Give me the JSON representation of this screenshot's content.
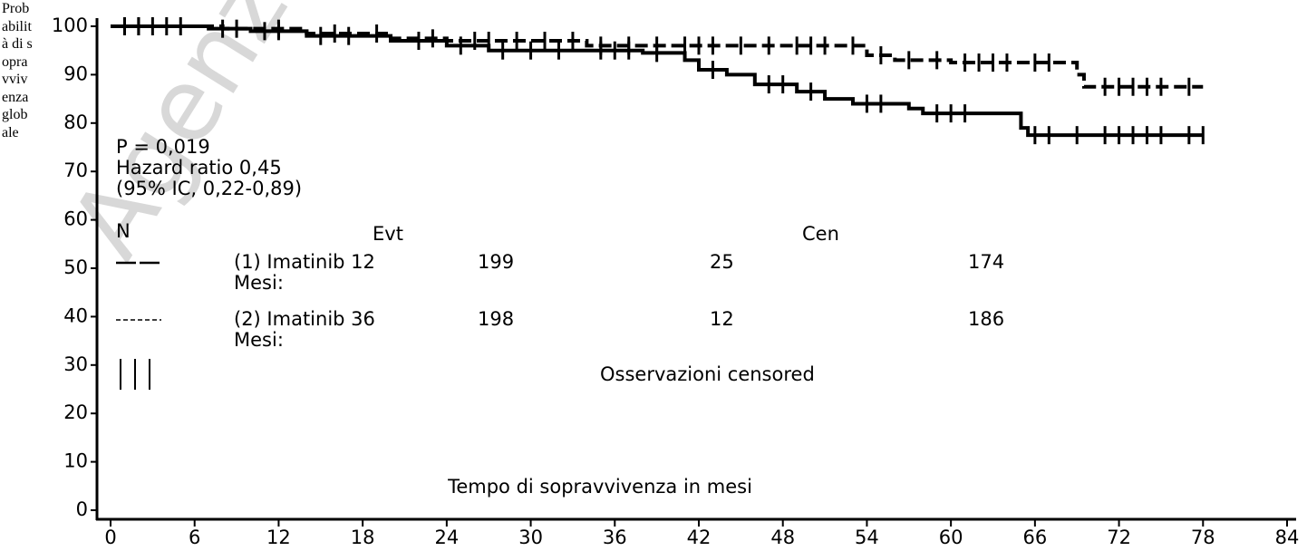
{
  "chart_data": {
    "type": "kaplan-meier",
    "ylabel": "Probabilità di sopravvivenza globale",
    "xlabel": "Tempo di sopravvivenza in mesi",
    "watermark": "Agenzia",
    "annotations": [
      "P = 0,019",
      "Hazard ratio 0,45",
      "(95% IC, 0,22-0,89)"
    ],
    "table_headers": [
      "N",
      "Evt",
      "Cen"
    ],
    "table_rows": [
      {
        "label": [
          "(1) Imatinib 12",
          "Mesi:"
        ],
        "n": 199,
        "evt": 25,
        "cen": 174
      },
      {
        "label": [
          "(2) Imatinib 36",
          "Mesi:"
        ],
        "n": 198,
        "evt": 12,
        "cen": 186
      }
    ],
    "censor_legend": "Osservazioni censored",
    "series": [
      {
        "color": "#000000",
        "dash": false,
        "x": [
          0,
          7,
          10,
          14,
          20,
          24,
          27,
          38,
          41,
          42,
          44,
          46,
          49,
          51,
          53,
          57,
          58,
          65,
          65.5,
          78
        ],
        "values": [
          100,
          99.5,
          99,
          98,
          97,
          96,
          95,
          94.5,
          93,
          91,
          90,
          88,
          86.5,
          85,
          84,
          83,
          82,
          79,
          77.5,
          77.5
        ],
        "censored": [
          1,
          2,
          3,
          5,
          8,
          11,
          12,
          15,
          17,
          22,
          25,
          28,
          30,
          32,
          35,
          36,
          37,
          39,
          43,
          47,
          48,
          50,
          54,
          55,
          59,
          60,
          61,
          66,
          67,
          69,
          71,
          72,
          73,
          74,
          75,
          77,
          78
        ]
      },
      {
        "color": "#000000",
        "dash": true,
        "x": [
          0,
          8,
          14,
          20,
          24,
          34,
          54,
          56,
          60,
          69,
          69.5,
          78
        ],
        "values": [
          100,
          99.5,
          98.5,
          97.5,
          97,
          96,
          94,
          93,
          92.5,
          90,
          87.5,
          87.5
        ],
        "censored": [
          1,
          2,
          4,
          9,
          12,
          16,
          19,
          23,
          26,
          27,
          29,
          31,
          33,
          35,
          37,
          39,
          41,
          42,
          43,
          45,
          47,
          49,
          50,
          51,
          53,
          55,
          57,
          59,
          61,
          62,
          63,
          64,
          66,
          67,
          71,
          72,
          73,
          74,
          75,
          77
        ]
      }
    ],
    "xlim": [
      0,
      84
    ],
    "xticks": [
      0,
      6,
      12,
      18,
      24,
      30,
      36,
      42,
      48,
      54,
      60,
      66,
      72,
      78,
      84
    ],
    "ylim": [
      0,
      100
    ],
    "yticks": [
      0,
      10,
      20,
      30,
      40,
      50,
      60,
      70,
      80,
      90,
      100
    ]
  }
}
